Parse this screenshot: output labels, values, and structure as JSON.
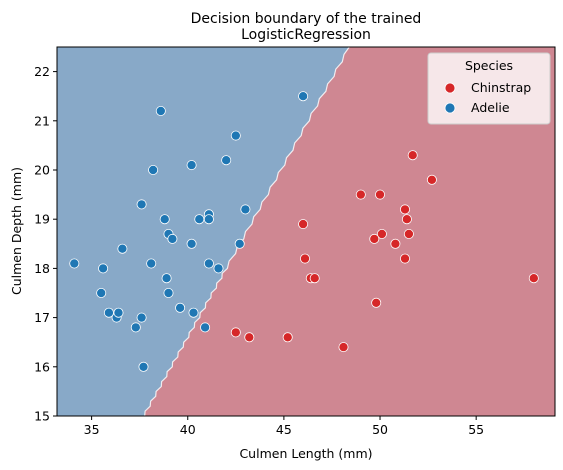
{
  "chart_data": {
    "type": "scatter",
    "title": "Decision boundary of the trained",
    "subtitle": "LogisticRegression",
    "xlabel": "Culmen Length (mm)",
    "ylabel": "Culmen Depth (mm)",
    "xlim": [
      33.2,
      59.1
    ],
    "ylim": [
      15.0,
      22.5
    ],
    "xticks": [
      "35",
      "40",
      "45",
      "50",
      "55"
    ],
    "yticks": [
      "15",
      "16",
      "17",
      "18",
      "19",
      "20",
      "21",
      "22"
    ],
    "grid": false,
    "legend": {
      "title": "Species",
      "placement": "top-right"
    },
    "boundary": {
      "points": [
        [
          37.7,
          15.0
        ],
        [
          42.0,
          18.0
        ],
        [
          48.4,
          22.5
        ]
      ]
    },
    "regions": [
      {
        "name": "Adelie",
        "color": "#88a9c8"
      },
      {
        "name": "Chinstrap",
        "color": "#cf8792"
      }
    ],
    "series": [
      {
        "name": "Chinstrap",
        "color": "#d62728",
        "x": [
          46.0,
          46.1,
          46.4,
          46.6,
          49.0,
          50.0,
          50.1,
          50.8,
          51.3,
          51.4,
          51.5,
          51.7,
          52.7,
          49.7,
          49.8,
          51.3,
          42.5,
          43.2,
          45.2,
          48.1,
          58.0
        ],
        "y": [
          18.9,
          18.2,
          17.8,
          17.8,
          19.5,
          19.5,
          18.7,
          18.5,
          19.2,
          19.0,
          18.7,
          20.3,
          19.8,
          18.6,
          17.3,
          18.2,
          16.7,
          16.6,
          16.6,
          16.4,
          17.8
        ]
      },
      {
        "name": "Adelie",
        "color": "#1f77b4",
        "x": [
          34.1,
          35.5,
          35.6,
          35.9,
          36.3,
          36.4,
          36.6,
          37.3,
          37.6,
          37.6,
          37.7,
          38.1,
          38.2,
          38.6,
          38.8,
          38.9,
          39.0,
          39.0,
          39.2,
          39.6,
          40.2,
          40.2,
          40.3,
          40.6,
          40.9,
          41.1,
          41.1,
          41.1,
          41.6,
          42.0,
          42.5,
          42.7,
          43.0,
          46.0
        ],
        "y": [
          18.1,
          17.5,
          18.0,
          17.1,
          17.0,
          17.1,
          18.4,
          16.8,
          19.3,
          17.0,
          16.0,
          18.1,
          20.0,
          21.2,
          19.0,
          17.8,
          18.7,
          17.5,
          18.6,
          17.2,
          20.1,
          18.5,
          17.1,
          19.0,
          16.8,
          19.1,
          19.0,
          18.1,
          18.0,
          20.2,
          20.7,
          18.5,
          19.2,
          21.5
        ]
      }
    ]
  }
}
